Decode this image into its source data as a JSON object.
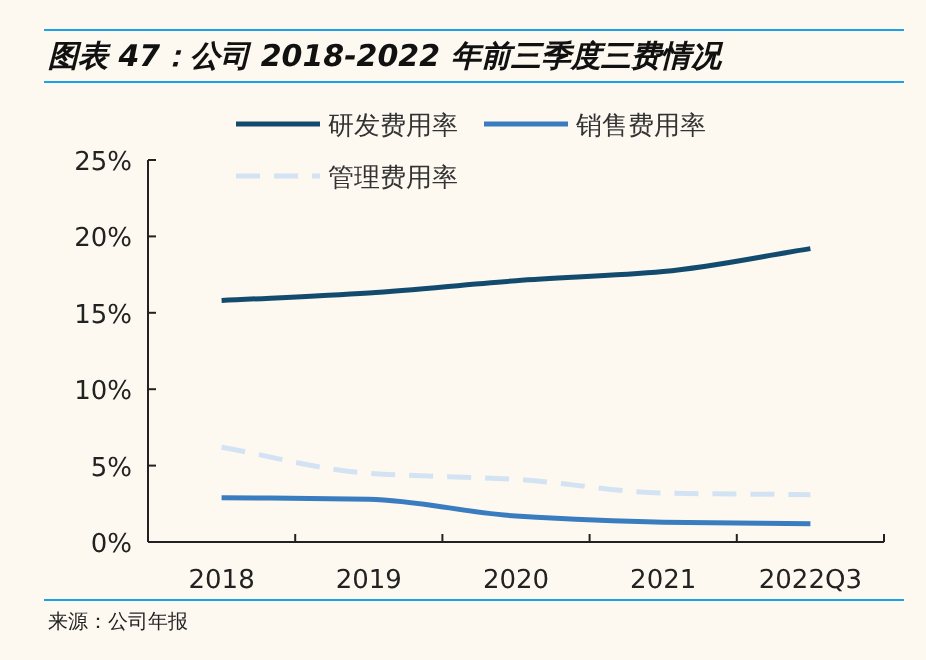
{
  "chart_data": {
    "type": "line",
    "title": "图表 47：公司 2018-2022 年前三季度三费情况",
    "categories": [
      "2018",
      "2019",
      "2020",
      "2021",
      "2022Q3"
    ],
    "series": [
      {
        "name": "研发费用率",
        "color": "#134b6e",
        "values": [
          15.8,
          16.3,
          17.1,
          17.7,
          19.2
        ]
      },
      {
        "name": "销售费用率",
        "color": "#3a7cc0",
        "values": [
          2.9,
          2.8,
          1.7,
          1.3,
          1.2
        ]
      },
      {
        "name": "管理费用率",
        "color": "#d3e3f4",
        "values": [
          6.2,
          4.5,
          4.1,
          3.2,
          3.1
        ],
        "line_style": "dashed"
      }
    ],
    "ylim": [
      0,
      25
    ],
    "yticks": [
      {
        "value": 0,
        "label": "0%"
      },
      {
        "value": 5,
        "label": "5%"
      },
      {
        "value": 10,
        "label": "10%"
      },
      {
        "value": 15,
        "label": "15%"
      },
      {
        "value": 20,
        "label": "20%"
      },
      {
        "value": 25,
        "label": "25%"
      }
    ],
    "grid": false,
    "legend": "top",
    "marker": "none",
    "annotations": [
      "来源：公司年报"
    ]
  }
}
